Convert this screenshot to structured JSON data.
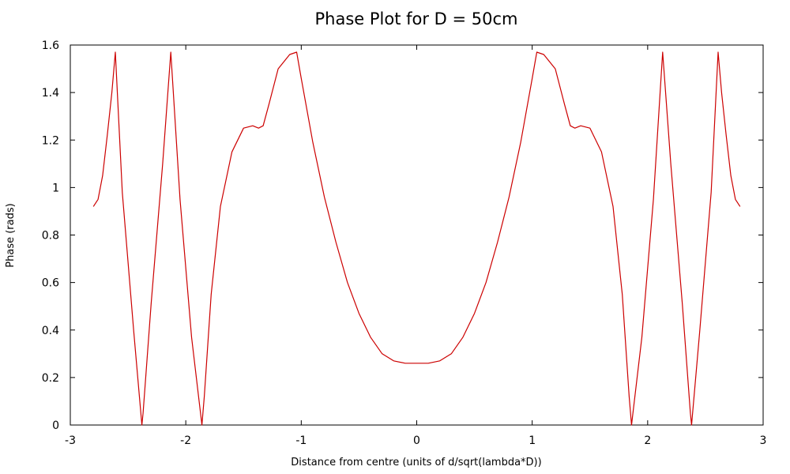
{
  "chart_data": {
    "type": "line",
    "title": "Phase Plot for D = 50cm",
    "xlabel": "Distance from centre (units of d/sqrt(lambda*D))",
    "ylabel": "Phase (rads)",
    "xlim": [
      -3,
      3
    ],
    "ylim": [
      0,
      1.6
    ],
    "x_ticks": [
      -3,
      -2,
      -1,
      0,
      1,
      2,
      3
    ],
    "y_ticks": [
      0,
      0.2,
      0.4,
      0.6,
      0.8,
      1,
      1.2,
      1.4,
      1.6
    ],
    "x_tick_labels": [
      "-3",
      "-2",
      "-1",
      "0",
      "1",
      "2",
      "3"
    ],
    "y_tick_labels": [
      "0",
      "0.2",
      "0.4",
      "0.6",
      "0.8",
      "1",
      "1.2",
      "1.4",
      "1.6"
    ],
    "grid": false,
    "series": [
      {
        "color": "#cc0000",
        "x": [
          -2.8,
          -2.76,
          -2.72,
          -2.68,
          -2.64,
          -2.61,
          -2.55,
          -2.45,
          -2.38,
          -2.37,
          -2.3,
          -2.2,
          -2.13,
          -2.05,
          -1.95,
          -1.86,
          -1.84,
          -1.78,
          -1.7,
          -1.6,
          -1.5,
          -1.42,
          -1.37,
          -1.33,
          -1.28,
          -1.2,
          -1.1,
          -1.04,
          -1.0,
          -0.9,
          -0.8,
          -0.7,
          -0.6,
          -0.5,
          -0.4,
          -0.3,
          -0.2,
          -0.1,
          0.0,
          0.1,
          0.2,
          0.3,
          0.4,
          0.5,
          0.6,
          0.7,
          0.8,
          0.9,
          1.0,
          1.04,
          1.1,
          1.2,
          1.28,
          1.33,
          1.37,
          1.42,
          1.5,
          1.6,
          1.7,
          1.78,
          1.84,
          1.86,
          1.95,
          2.05,
          2.13,
          2.2,
          2.3,
          2.37,
          2.38,
          2.45,
          2.55,
          2.61,
          2.64,
          2.68,
          2.72,
          2.76,
          2.8
        ],
        "y": [
          0.92,
          0.95,
          1.05,
          1.22,
          1.4,
          1.57,
          0.98,
          0.39,
          0.0,
          0.05,
          0.51,
          1.1,
          1.57,
          0.95,
          0.37,
          0.0,
          0.12,
          0.55,
          0.92,
          1.15,
          1.25,
          1.26,
          1.25,
          1.26,
          1.35,
          1.5,
          1.56,
          1.57,
          1.46,
          1.19,
          0.96,
          0.77,
          0.6,
          0.47,
          0.37,
          0.3,
          0.27,
          0.26,
          0.26,
          0.26,
          0.27,
          0.3,
          0.37,
          0.47,
          0.6,
          0.77,
          0.96,
          1.19,
          1.46,
          1.57,
          1.56,
          1.5,
          1.35,
          1.26,
          1.25,
          1.26,
          1.25,
          1.15,
          0.92,
          0.55,
          0.12,
          0.0,
          0.37,
          0.95,
          1.57,
          1.1,
          0.51,
          0.05,
          0.0,
          0.39,
          0.98,
          1.57,
          1.4,
          1.22,
          1.05,
          0.95,
          0.92
        ]
      }
    ]
  }
}
